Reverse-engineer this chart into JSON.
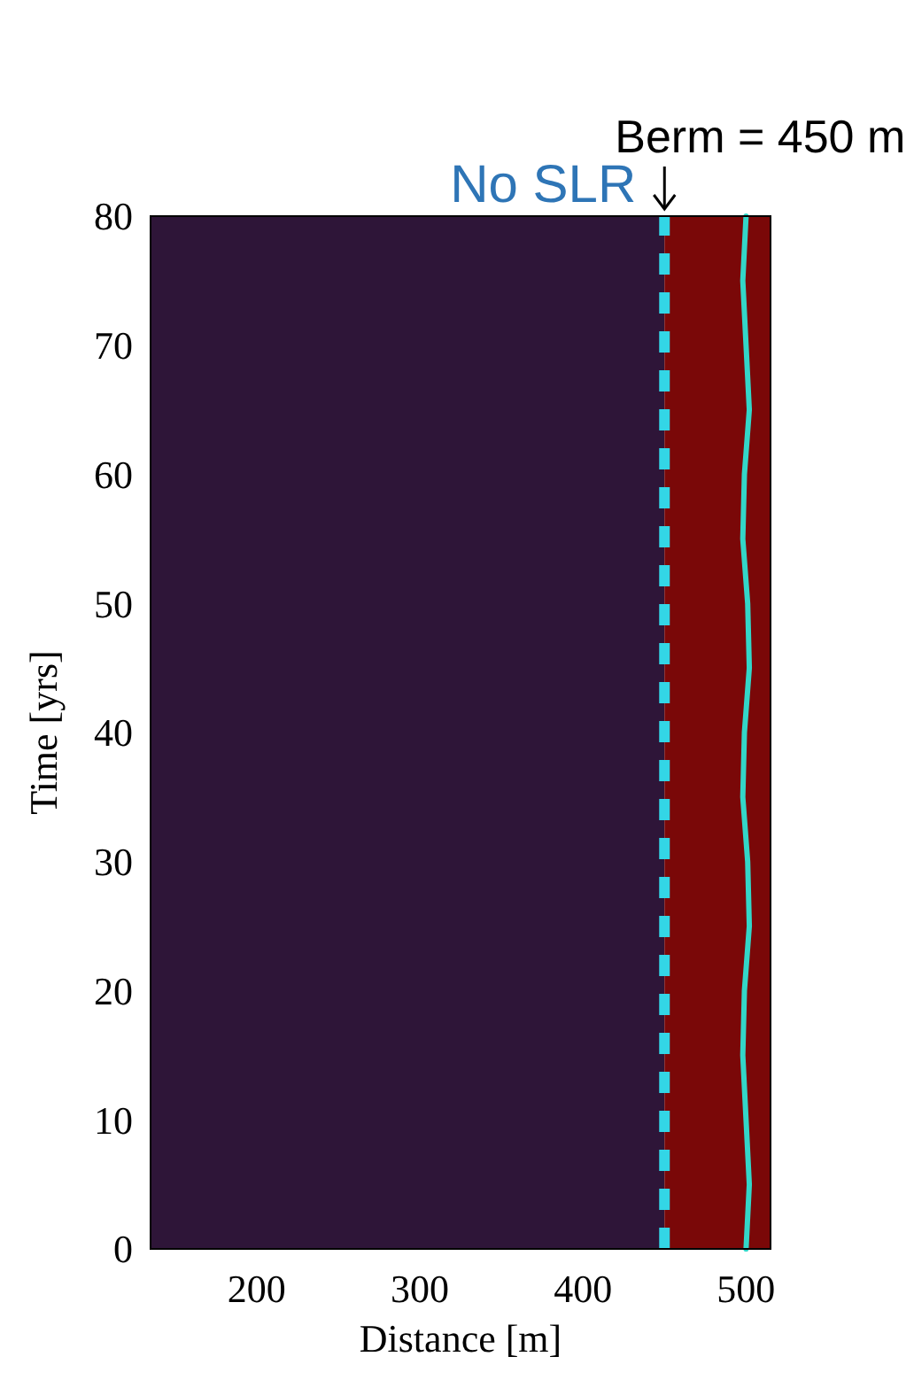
{
  "chart_data": {
    "type": "line",
    "title": "No SLR",
    "xlabel": "Distance [m]",
    "ylabel": "Time [yrs]",
    "xlim": [
      135,
      515
    ],
    "xticks": [
      200,
      300,
      400,
      500
    ],
    "ylim": [
      0,
      80
    ],
    "yticks": [
      0,
      10,
      20,
      30,
      40,
      50,
      60,
      70,
      80
    ],
    "grid": false,
    "marker": "none",
    "line_style": "solid",
    "bands": [
      {
        "axis": "x",
        "from": 135,
        "to": 450,
        "color": "#2e1538"
      },
      {
        "axis": "x",
        "from": 450,
        "to": 515,
        "color": "#7a0808"
      }
    ],
    "ref_lines": [
      {
        "axis": "x",
        "value": 450,
        "label": "Berm = 450 m",
        "color": "#33d6e6",
        "line_style": "dashed"
      }
    ],
    "series": [
      {
        "color": "#33d6c8",
        "x": [
          500,
          502,
          500,
          498,
          499,
          502,
          501,
          498,
          499,
          502,
          501,
          498,
          499,
          502,
          500,
          498,
          500
        ],
        "values": [
          0,
          5,
          10,
          15,
          20,
          25,
          30,
          35,
          40,
          45,
          50,
          55,
          60,
          65,
          70,
          75,
          80
        ]
      }
    ]
  }
}
